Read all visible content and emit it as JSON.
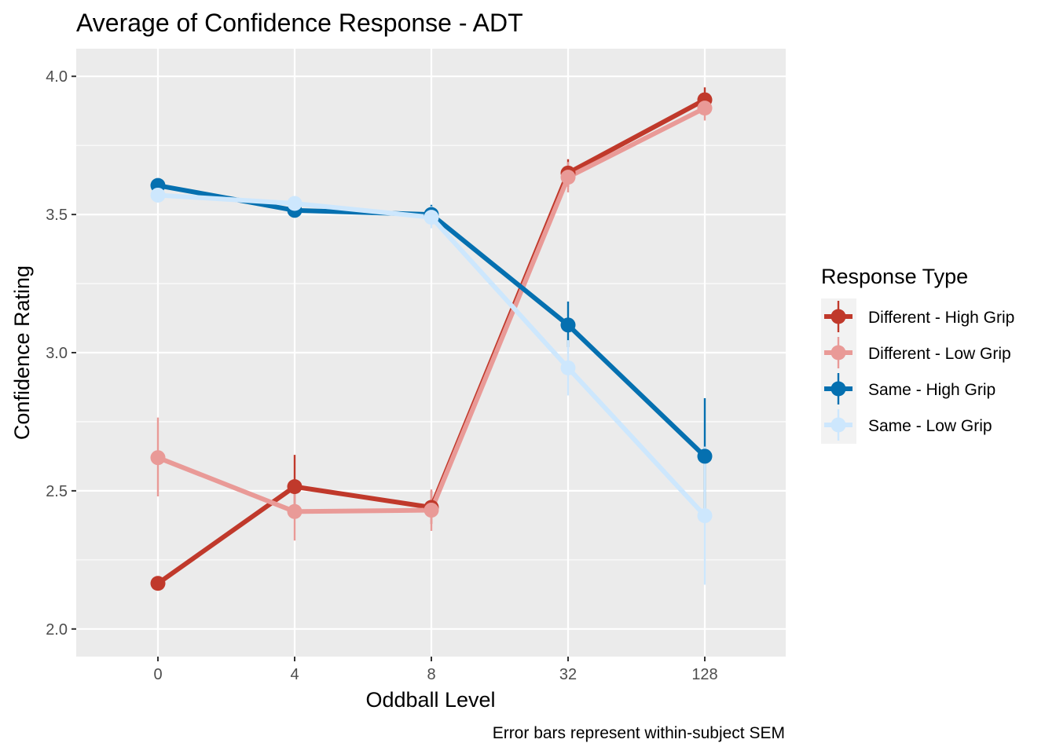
{
  "chart_data": {
    "type": "line",
    "title": "Average of Confidence Response - ADT",
    "xlabel": "Oddball Level",
    "ylabel": "Confidence Rating",
    "caption": "Error bars represent within-subject SEM",
    "categories": [
      "0",
      "4",
      "8",
      "32",
      "128"
    ],
    "y_ticks": [
      "2.0",
      "2.5",
      "3.0",
      "3.5",
      "4.0"
    ],
    "ylim": [
      1.9,
      4.1
    ],
    "grid": true,
    "panel_background": "#ebebeb",
    "legend": {
      "title": "Response Type",
      "position": "right"
    },
    "series": [
      {
        "name": "Different - High Grip",
        "color": "#c0392b",
        "values": [
          2.165,
          2.515,
          2.44,
          3.65,
          3.915
        ],
        "err_low": [
          null,
          2.4,
          2.38,
          3.6,
          3.87
        ],
        "err_high": [
          null,
          2.63,
          2.5,
          3.7,
          3.96
        ]
      },
      {
        "name": "Different - Low Grip",
        "color": "#e99a97",
        "values": [
          2.62,
          2.425,
          2.43,
          3.635,
          3.885
        ],
        "err_low": [
          2.48,
          2.32,
          2.355,
          3.58,
          3.84
        ],
        "err_high": [
          2.765,
          2.53,
          2.505,
          3.69,
          3.93
        ]
      },
      {
        "name": "Same - High Grip",
        "color": "#0570b0",
        "values": [
          3.605,
          3.515,
          3.5,
          3.1,
          2.625
        ],
        "err_low": [
          null,
          null,
          3.47,
          3.02,
          2.42
        ],
        "err_high": [
          null,
          null,
          3.535,
          3.185,
          2.835
        ]
      },
      {
        "name": "Same - Low Grip",
        "color": "#cde7fd",
        "values": [
          3.57,
          3.54,
          3.49,
          2.945,
          2.41
        ],
        "err_low": [
          null,
          null,
          3.45,
          2.845,
          2.16
        ],
        "err_high": [
          null,
          null,
          3.53,
          3.045,
          2.66
        ]
      }
    ]
  }
}
